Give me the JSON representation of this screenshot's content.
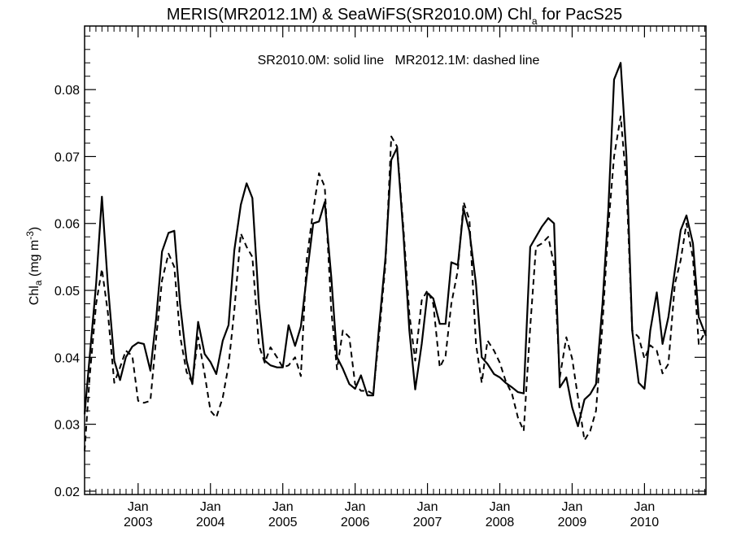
{
  "chart_data": {
    "type": "line",
    "title": {
      "prefix": "MERIS(MR2012.1M) & SeaWiFS(SR2010.0M)  Chl",
      "sub": "a",
      "suffix": " for PacS25"
    },
    "legend_note": "SR2010.0M: solid line   MR2012.1M: dashed line",
    "ylabel": {
      "prefix": "Chl",
      "sub": "a",
      "mid": " (mg m",
      "sup": "-3",
      "suffix": ")"
    },
    "xlim": [
      2002.26,
      2010.85
    ],
    "ylim": [
      0.0195,
      0.0895
    ],
    "yticks": [
      {
        "value": 0.02,
        "label": "0.02"
      },
      {
        "value": 0.03,
        "label": "0.03"
      },
      {
        "value": 0.04,
        "label": "0.04"
      },
      {
        "value": 0.05,
        "label": "0.05"
      },
      {
        "value": 0.06,
        "label": "0.06"
      },
      {
        "value": 0.07,
        "label": "0.07"
      },
      {
        "value": 0.08,
        "label": "0.08"
      }
    ],
    "xticks": [
      {
        "value": 2003.0,
        "month": "Jan",
        "year": "2003"
      },
      {
        "value": 2004.0,
        "month": "Jan",
        "year": "2004"
      },
      {
        "value": 2005.0,
        "month": "Jan",
        "year": "2005"
      },
      {
        "value": 2006.0,
        "month": "Jan",
        "year": "2006"
      },
      {
        "value": 2007.0,
        "month": "Jan",
        "year": "2007"
      },
      {
        "value": 2008.0,
        "month": "Jan",
        "year": "2008"
      },
      {
        "value": 2009.0,
        "month": "Jan",
        "year": "2009"
      },
      {
        "value": 2010.0,
        "month": "Jan",
        "year": "2010"
      }
    ],
    "series": [
      {
        "name": "SR2010.0M",
        "style": "solid",
        "x": [
          2002.26,
          2002.33,
          2002.42,
          2002.5,
          2002.58,
          2002.67,
          2002.75,
          2002.83,
          2002.92,
          2003.0,
          2003.08,
          2003.17,
          2003.25,
          2003.33,
          2003.42,
          2003.5,
          2003.58,
          2003.67,
          2003.75,
          2003.83,
          2003.92,
          2004.0,
          2004.08,
          2004.17,
          2004.25,
          2004.33,
          2004.42,
          2004.5,
          2004.58,
          2004.67,
          2004.75,
          2004.83,
          2004.92,
          2005.0,
          2005.08,
          2005.17,
          2005.25,
          2005.33,
          2005.42,
          2005.5,
          2005.58,
          2005.67,
          2005.75,
          2005.83,
          2005.92,
          2006.0,
          2006.08,
          2006.17,
          2006.25,
          2006.33,
          2006.42,
          2006.5,
          2006.58,
          2006.67,
          2006.75,
          2006.83,
          2006.92,
          2007.0,
          2007.08,
          2007.17,
          2007.25,
          2007.33,
          2007.42,
          2007.5,
          2007.58,
          2007.67,
          2007.75,
          2007.83,
          2007.92,
          2008.0,
          2008.08,
          2008.17,
          2008.25,
          2008.33,
          2008.42,
          2008.5,
          2008.58,
          2008.67,
          2008.75,
          2008.83,
          2008.92,
          2009.0,
          2009.08,
          2009.17,
          2009.25,
          2009.33,
          2009.42,
          2009.5,
          2009.58,
          2009.67,
          2009.75,
          2009.83,
          2009.92,
          2010.0,
          2010.08,
          2010.17,
          2010.25,
          2010.33,
          2010.42,
          2010.5,
          2010.58,
          2010.67,
          2010.75,
          2010.85
        ],
        "y": [
          0.0315,
          0.04,
          0.051,
          0.064,
          0.051,
          0.0395,
          0.0366,
          0.04,
          0.0416,
          0.0422,
          0.042,
          0.038,
          0.0459,
          0.0558,
          0.0586,
          0.0589,
          0.048,
          0.0395,
          0.036,
          0.0453,
          0.0405,
          0.0393,
          0.0375,
          0.0425,
          0.0448,
          0.056,
          0.0628,
          0.066,
          0.0638,
          0.048,
          0.0395,
          0.0388,
          0.0385,
          0.0385,
          0.0448,
          0.0417,
          0.0446,
          0.052,
          0.06,
          0.0603,
          0.0632,
          0.052,
          0.04,
          0.0383,
          0.036,
          0.0353,
          0.0373,
          0.0343,
          0.0343,
          0.0445,
          0.055,
          0.0695,
          0.0713,
          0.058,
          0.044,
          0.0352,
          0.042,
          0.0496,
          0.0488,
          0.045,
          0.045,
          0.0542,
          0.0538,
          0.0622,
          0.0588,
          0.051,
          0.04,
          0.039,
          0.0375,
          0.037,
          0.0362,
          0.0355,
          0.0348,
          0.0346,
          0.0565,
          0.058,
          0.0595,
          0.0608,
          0.06,
          0.0355,
          0.037,
          0.0325,
          0.0297,
          0.0337,
          0.0345,
          0.036,
          0.048,
          0.062,
          0.0815,
          0.084,
          0.07,
          0.044,
          0.0362,
          0.0353,
          0.044,
          0.0497,
          0.042,
          0.046,
          0.053,
          0.059,
          0.0612,
          0.057,
          0.046,
          0.0432
        ]
      },
      {
        "name": "MR2012.1M",
        "style": "dashed",
        "x": [
          2002.26,
          2002.33,
          2002.42,
          2002.5,
          2002.58,
          2002.67,
          2002.75,
          2002.83,
          2002.92,
          2003.0,
          2003.08,
          2003.17,
          2003.25,
          2003.33,
          2003.42,
          2003.5,
          2003.58,
          2003.67,
          2003.75,
          2003.83,
          2003.92,
          2004.0,
          2004.08,
          2004.17,
          2004.25,
          2004.33,
          2004.42,
          2004.5,
          2004.58,
          2004.67,
          2004.75,
          2004.83,
          2004.92,
          2005.0,
          2005.08,
          2005.17,
          2005.25,
          2005.33,
          2005.42,
          2005.5,
          2005.58,
          2005.67,
          2005.75,
          2005.83,
          2005.92,
          2006.0,
          2006.08,
          2006.17,
          2006.25,
          2006.33,
          2006.42,
          2006.5,
          2006.58,
          2006.67,
          2006.75,
          2006.83,
          2006.92,
          2007.0,
          2007.08,
          2007.17,
          2007.25,
          2007.33,
          2007.42,
          2007.5,
          2007.58,
          2007.67,
          2007.75,
          2007.83,
          2007.92,
          2008.0,
          2008.08,
          2008.17,
          2008.25,
          2008.33,
          2008.42,
          2008.5,
          2008.58,
          2008.67,
          2008.75,
          2008.83,
          2008.92,
          2009.0,
          2009.08,
          2009.17,
          2009.25,
          2009.33,
          2009.42,
          2009.5,
          2009.58,
          2009.67,
          2009.75,
          2009.83,
          2009.92,
          2010.0,
          2010.08,
          2010.17,
          2010.25,
          2010.33,
          2010.42,
          2010.5,
          2010.58,
          2010.67,
          2010.75,
          2010.85
        ],
        "y": [
          0.026,
          0.037,
          0.048,
          0.0532,
          0.0468,
          0.0362,
          0.0385,
          0.041,
          0.0402,
          0.0335,
          0.0332,
          0.0335,
          0.043,
          0.0515,
          0.0555,
          0.0535,
          0.0432,
          0.0378,
          0.0362,
          0.043,
          0.0375,
          0.032,
          0.031,
          0.034,
          0.0388,
          0.047,
          0.0585,
          0.0565,
          0.055,
          0.0418,
          0.0392,
          0.0415,
          0.04,
          0.0385,
          0.0388,
          0.04,
          0.0372,
          0.0545,
          0.062,
          0.0675,
          0.0655,
          0.047,
          0.0382,
          0.044,
          0.043,
          0.036,
          0.035,
          0.035,
          0.0345,
          0.0432,
          0.054,
          0.073,
          0.0715,
          0.059,
          0.0465,
          0.0395,
          0.0485,
          0.05,
          0.048,
          0.0385,
          0.0402,
          0.048,
          0.053,
          0.0632,
          0.0605,
          0.042,
          0.0362,
          0.0425,
          0.041,
          0.0392,
          0.0365,
          0.0345,
          0.031,
          0.029,
          0.0445,
          0.0565,
          0.057,
          0.058,
          0.0538,
          0.037,
          0.043,
          0.0398,
          0.034,
          0.0276,
          0.029,
          0.032,
          0.045,
          0.0595,
          0.07,
          0.076,
          0.066,
          0.044,
          0.043,
          0.0398,
          0.0418,
          0.041,
          0.0376,
          0.039,
          0.051,
          0.0545,
          0.06,
          0.0548,
          0.042,
          0.044
        ]
      }
    ]
  }
}
